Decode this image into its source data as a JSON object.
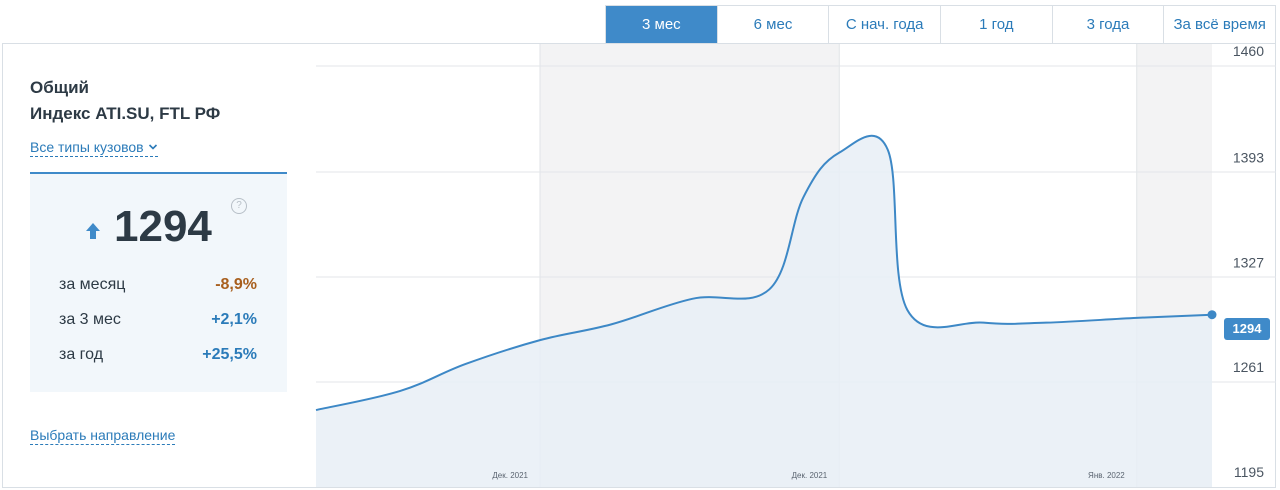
{
  "tabs": [
    {
      "label": "3 мес",
      "active": true
    },
    {
      "label": "6 мес",
      "active": false
    },
    {
      "label": "С нач. года",
      "active": false
    },
    {
      "label": "1 год",
      "active": false
    },
    {
      "label": "3 года",
      "active": false
    },
    {
      "label": "За всё время",
      "active": false
    }
  ],
  "panel": {
    "title_line1": "Общий",
    "title_line2": "Индекс ATI.SU, FTL РФ",
    "body_types_link": "Все типы кузовов",
    "current_value": "1294",
    "help_symbol": "?",
    "stats": [
      {
        "label": "за месяц",
        "value": "-8,9%",
        "trend": "negative"
      },
      {
        "label": "за 3 мес",
        "value": "+2,1%",
        "trend": "positive"
      },
      {
        "label": "за год",
        "value": "+25,5%",
        "trend": "positive"
      }
    ],
    "choose_direction_link": "Выбрать направление"
  },
  "colors": {
    "accent": "#3f8ac9",
    "line": "#3d88c6",
    "area": "#e8eef6",
    "negative": "#a85f1e",
    "positive": "#2b7bb9"
  },
  "chart_data": {
    "type": "area",
    "title": "",
    "xlabel": "",
    "ylabel": "",
    "ylim": [
      1195,
      1460
    ],
    "y_ticks": [
      "1460",
      "1393",
      "1327",
      "1261",
      "1195"
    ],
    "y_tick_values": [
      1460,
      1393,
      1327,
      1261,
      1195
    ],
    "x_tick_labels": [
      "Дек. 2021",
      "Дек. 2021",
      "Янв. 2022"
    ],
    "x_range": [
      0,
      100
    ],
    "x_tick_positions": [
      25,
      58.4,
      91.6
    ],
    "shaded_bands": [
      [
        25,
        58.4
      ],
      [
        91.6,
        100
      ]
    ],
    "grid": true,
    "series": [
      {
        "x": [
          0,
          9.4,
          16.7,
          25,
          33,
          42,
          50.6,
          54.4,
          58.4,
          63.8,
          66,
          74.5,
          81.5,
          91.6,
          100
        ],
        "values": [
          1234,
          1246,
          1263,
          1278,
          1288,
          1304,
          1310,
          1368,
          1396,
          1398,
          1297,
          1289,
          1289,
          1292,
          1294
        ]
      }
    ],
    "last_value_label": "1294"
  }
}
